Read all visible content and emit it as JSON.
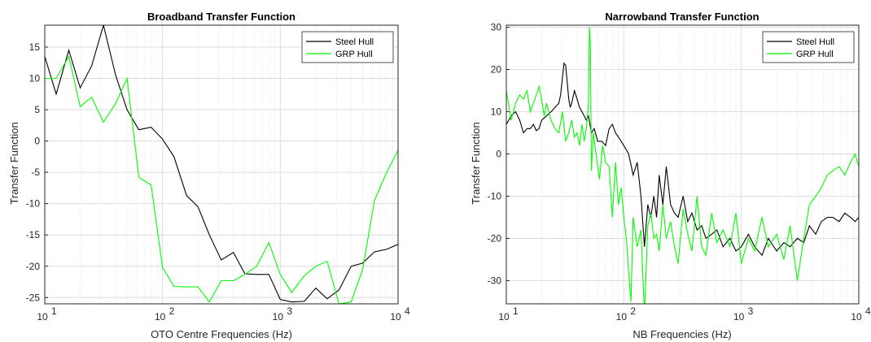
{
  "chart_data": [
    {
      "type": "line",
      "title": "Broadband Transfer Function",
      "xlabel": "OTO Centre Frequencies (Hz)",
      "ylabel": "Transfer Function",
      "xscale": "log",
      "xlim": [
        10,
        10000
      ],
      "ylim": [
        -26,
        18.5
      ],
      "xticks": [
        10,
        100,
        1000,
        10000
      ],
      "xtick_labels": [
        "10",
        "10",
        "10",
        "10"
      ],
      "xtick_exps": [
        "1",
        "2",
        "3",
        "4"
      ],
      "yticks": [
        -25,
        -20,
        -15,
        -10,
        -5,
        0,
        5,
        10,
        15
      ],
      "ytick_labels": [
        "-25",
        "-20",
        "-15",
        "-10",
        "-5",
        "0",
        "5",
        "10",
        "15"
      ],
      "grid": true,
      "legend": "top-right",
      "series": [
        {
          "name": "Steel Hull",
          "color": "#000000",
          "x": [
            10,
            12.5,
            16,
            20,
            25,
            31.5,
            40,
            50,
            63,
            80,
            100,
            125,
            160,
            200,
            250,
            315,
            400,
            500,
            630,
            800,
            1000,
            1250,
            1600,
            2000,
            2500,
            3150,
            4000,
            5000,
            6300,
            8000,
            10000
          ],
          "y": [
            13.5,
            7.5,
            14.5,
            8.5,
            12,
            18.5,
            10.5,
            5,
            1.8,
            2.2,
            0.3,
            -2.5,
            -8.7,
            -10.5,
            -15,
            -19,
            -17.8,
            -21.2,
            -21.3,
            -21.3,
            -25.3,
            -25.7,
            -25.6,
            -23.5,
            -25.2,
            -23.8,
            -20,
            -19.5,
            -17.7,
            -17.3,
            -16.5
          ]
        },
        {
          "name": "GRP Hull",
          "color": "#00ff00",
          "x": [
            10,
            12.5,
            16,
            20,
            25,
            31.5,
            40,
            50,
            63,
            80,
            100,
            125,
            160,
            200,
            250,
            315,
            400,
            500,
            630,
            800,
            1000,
            1250,
            1600,
            2000,
            2500,
            3150,
            4000,
            5000,
            6300,
            8000,
            10000
          ],
          "y": [
            10,
            10,
            13.5,
            5.5,
            7,
            3,
            6,
            10,
            -5.8,
            -7,
            -20.2,
            -23.2,
            -23.3,
            -23.3,
            -25.7,
            -22.3,
            -22.3,
            -21.3,
            -20,
            -16.2,
            -21.3,
            -24.2,
            -21.5,
            -20,
            -19.2,
            -26,
            -25.7,
            -20.5,
            -9.5,
            -5,
            -1.5
          ]
        }
      ]
    },
    {
      "type": "line",
      "title": "Narrowband Transfer Function",
      "xlabel": "NB Frequencies (Hz)",
      "ylabel": "Transfer Function",
      "xscale": "log",
      "xlim": [
        10,
        10000
      ],
      "ylim": [
        -35.5,
        30.5
      ],
      "xticks": [
        10,
        100,
        1000,
        10000
      ],
      "xtick_labels": [
        "10",
        "10",
        "10",
        "10"
      ],
      "xtick_exps": [
        "1",
        "2",
        "3",
        "4"
      ],
      "yticks": [
        -30,
        -20,
        -10,
        0,
        10,
        20,
        30
      ],
      "ytick_labels": [
        "-30",
        "-20",
        "-10",
        "0",
        "10",
        "20",
        "30"
      ],
      "grid": true,
      "legend": "top-right",
      "series": [
        {
          "name": "Steel Hull",
          "color": "#000000",
          "x": [
            10,
            11,
            12,
            13,
            14,
            15,
            16,
            17,
            18,
            19,
            20,
            22,
            24,
            26,
            28,
            29,
            30,
            31,
            32,
            33,
            34,
            35,
            36,
            38,
            40,
            42,
            44,
            46,
            48,
            50,
            53,
            56,
            60,
            65,
            70,
            75,
            80,
            85,
            90,
            95,
            100,
            110,
            120,
            130,
            140,
            150,
            160,
            170,
            180,
            190,
            200,
            215,
            230,
            250,
            270,
            290,
            320,
            350,
            380,
            420,
            460,
            500,
            560,
            620,
            700,
            800,
            900,
            1000,
            1150,
            1300,
            1500,
            1700,
            2000,
            2300,
            2600,
            3000,
            3400,
            3800,
            4300,
            4800,
            5400,
            6000,
            6800,
            7600,
            8500,
            9300,
            10000
          ],
          "y": [
            7,
            9,
            10,
            8,
            5,
            6,
            6,
            7,
            5.5,
            6,
            8,
            9,
            10,
            11,
            12,
            14,
            18,
            21.5,
            21,
            17,
            13,
            11,
            12,
            15,
            13,
            11,
            10,
            9,
            8,
            9,
            5,
            6,
            3,
            3,
            2,
            6,
            7,
            5,
            4,
            3,
            2,
            0,
            -5,
            -2,
            -10,
            -22,
            -12,
            -15,
            -10,
            -15,
            -5,
            -12,
            -3,
            -12,
            -14,
            -15,
            -10,
            -16,
            -14,
            -18,
            -17,
            -20,
            -19,
            -18,
            -22,
            -20,
            -23,
            -22,
            -19,
            -22,
            -24,
            -20,
            -23,
            -21,
            -22,
            -20,
            -21,
            -17,
            -19,
            -16,
            -15,
            -15,
            -16,
            -14,
            -15,
            -16,
            -15
          ]
        },
        {
          "name": "GRP Hull",
          "color": "#00ff00",
          "x": [
            10,
            11,
            12,
            13,
            14,
            15,
            16,
            17,
            18,
            19,
            20,
            21,
            22,
            24,
            26,
            28,
            30,
            32,
            34,
            36,
            38,
            40,
            42,
            44,
            46,
            48,
            50,
            51,
            52,
            53,
            55,
            58,
            62,
            66,
            70,
            75,
            80,
            85,
            90,
            95,
            100,
            105,
            110,
            115,
            120,
            130,
            140,
            150,
            160,
            170,
            180,
            190,
            200,
            215,
            230,
            250,
            270,
            290,
            320,
            350,
            380,
            420,
            460,
            500,
            560,
            620,
            700,
            800,
            900,
            1000,
            1150,
            1300,
            1500,
            1700,
            2000,
            2300,
            2600,
            3000,
            3400,
            3800,
            4300,
            4800,
            5400,
            6000,
            6800,
            7600,
            8500,
            9300,
            10000
          ],
          "y": [
            15,
            8,
            12,
            14,
            13,
            15,
            10,
            12,
            14,
            16,
            13,
            9,
            12,
            8,
            6,
            5,
            10,
            3,
            5,
            8,
            4,
            5,
            2,
            7,
            3,
            6,
            12,
            30,
            25,
            -4,
            5,
            0,
            -6,
            2,
            -2,
            -3,
            -15,
            -2,
            -12,
            -8,
            -15,
            -20,
            -28,
            -35,
            -15,
            -22,
            -18,
            -38,
            -17,
            -14,
            -20,
            -19,
            -23,
            -12,
            -20,
            -16,
            -22,
            -26,
            -13,
            -19,
            -23,
            -10,
            -22,
            -24,
            -14,
            -21,
            -18,
            -22,
            -14,
            -26,
            -20,
            -23,
            -15,
            -22,
            -19,
            -25,
            -17,
            -30,
            -20,
            -12,
            -10,
            -8,
            -5,
            -4,
            -3,
            -5,
            -2,
            0,
            -3
          ]
        }
      ]
    }
  ]
}
